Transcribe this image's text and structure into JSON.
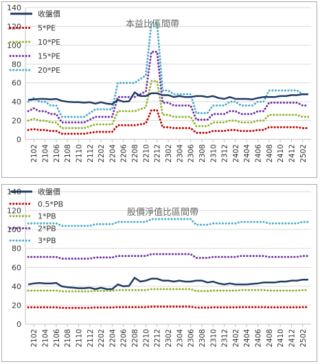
{
  "chart_data": [
    {
      "type": "line",
      "title": "本益比區間帶",
      "xlabel": "",
      "ylabel": "",
      "ylim": [
        0,
        140
      ],
      "yticks": [
        0,
        20,
        40,
        60,
        80,
        100,
        120,
        140
      ],
      "grid": true,
      "legend_position": "top-left",
      "x_tick_labels": [
        "2102",
        "2104",
        "2106",
        "2108",
        "2110",
        "2112",
        "2202",
        "2204",
        "2206",
        "2208",
        "2210",
        "2212",
        "2302",
        "2304",
        "2306",
        "2308",
        "2310",
        "2312",
        "2402",
        "2404",
        "2406",
        "2408",
        "2410",
        "2412",
        "2502"
      ],
      "months": [
        "2101",
        "2102",
        "2103",
        "2104",
        "2105",
        "2106",
        "2107",
        "2108",
        "2109",
        "2110",
        "2111",
        "2112",
        "2201",
        "2202",
        "2203",
        "2204",
        "2205",
        "2206",
        "2207",
        "2208",
        "2209",
        "2210",
        "2211",
        "2212",
        "2301",
        "2302",
        "2303",
        "2304",
        "2305",
        "2306",
        "2307",
        "2308",
        "2309",
        "2310",
        "2311",
        "2312",
        "2401",
        "2402",
        "2403",
        "2404",
        "2405",
        "2406",
        "2407",
        "2408",
        "2409",
        "2410",
        "2411",
        "2412",
        "2501",
        "2502",
        "2503"
      ],
      "series": [
        {
          "name": "收盤價",
          "color": "#1f3864",
          "style": "solid",
          "values": [
            42,
            42.5,
            43,
            43,
            42.5,
            43,
            41,
            40,
            39.5,
            39.5,
            39,
            39.5,
            38,
            39.5,
            38,
            37.5,
            42,
            40,
            40.5,
            50,
            46,
            46,
            49,
            49,
            47,
            47,
            45,
            46,
            45,
            45,
            46,
            46,
            45,
            46,
            44,
            43,
            45,
            43,
            43,
            43,
            42.5,
            44,
            45,
            45,
            45,
            46,
            46,
            47,
            47,
            48,
            48
          ]
        },
        {
          "name": "5*PE",
          "color": "#c00000",
          "style": "dotted",
          "values": [
            10,
            11,
            10,
            10,
            9,
            9,
            6,
            6,
            6,
            6,
            6,
            7,
            8,
            8,
            8,
            8,
            15,
            15,
            15,
            15,
            16,
            17,
            31,
            31,
            13,
            13,
            12,
            12,
            12,
            12,
            7,
            7,
            7,
            9,
            9,
            9,
            10,
            10,
            9,
            9,
            9,
            10,
            10,
            13,
            13,
            13,
            13,
            13,
            13,
            12,
            12
          ]
        },
        {
          "name": "10*PE",
          "color": "#8db32e",
          "style": "dotted",
          "values": [
            20,
            22,
            20,
            20,
            18,
            18,
            12,
            12,
            12,
            12,
            12,
            14,
            16,
            16,
            16,
            16,
            30,
            30,
            30,
            30,
            32,
            34,
            62,
            62,
            26,
            26,
            24,
            24,
            24,
            24,
            14,
            14,
            14,
            18,
            18,
            18,
            20,
            20,
            18,
            18,
            18,
            20,
            20,
            26,
            26,
            26,
            26,
            26,
            26,
            24,
            24
          ]
        },
        {
          "name": "15*PE",
          "color": "#7030a0",
          "style": "dotted",
          "values": [
            30,
            33,
            30,
            30,
            27,
            27,
            18,
            18,
            18,
            18,
            18,
            21,
            24,
            24,
            24,
            24,
            45,
            45,
            45,
            45,
            48,
            51,
            93,
            93,
            39,
            39,
            36,
            36,
            36,
            36,
            21,
            21,
            21,
            27,
            27,
            27,
            30,
            30,
            27,
            27,
            27,
            30,
            30,
            39,
            39,
            39,
            39,
            39,
            39,
            36,
            36
          ]
        },
        {
          "name": "20*PE",
          "color": "#4bacc6",
          "style": "dotted",
          "values": [
            40,
            44,
            40,
            40,
            36,
            36,
            24,
            24,
            24,
            24,
            24,
            28,
            32,
            32,
            32,
            32,
            60,
            60,
            60,
            60,
            64,
            68,
            124,
            124,
            52,
            52,
            48,
            48,
            48,
            48,
            28,
            28,
            28,
            36,
            36,
            36,
            40,
            40,
            36,
            36,
            36,
            40,
            40,
            52,
            52,
            52,
            52,
            52,
            52,
            48,
            48
          ]
        }
      ]
    },
    {
      "type": "line",
      "title": "股價淨值比區間帶",
      "xlabel": "",
      "ylabel": "",
      "ylim": [
        0,
        140
      ],
      "yticks": [
        0,
        20,
        40,
        60,
        80,
        100,
        120,
        140
      ],
      "grid": true,
      "legend_position": "top-left",
      "x_tick_labels": [
        "2102",
        "2104",
        "2106",
        "2108",
        "2110",
        "2112",
        "2202",
        "2204",
        "2206",
        "2208",
        "2210",
        "2212",
        "2302",
        "2304",
        "2306",
        "2308",
        "2310",
        "2312",
        "2402",
        "2404",
        "2406",
        "2408",
        "2410",
        "2412",
        "2502"
      ],
      "months": [
        "2101",
        "2102",
        "2103",
        "2104",
        "2105",
        "2106",
        "2107",
        "2108",
        "2109",
        "2110",
        "2111",
        "2112",
        "2201",
        "2202",
        "2203",
        "2204",
        "2205",
        "2206",
        "2207",
        "2208",
        "2209",
        "2210",
        "2211",
        "2212",
        "2301",
        "2302",
        "2303",
        "2304",
        "2305",
        "2306",
        "2307",
        "2308",
        "2309",
        "2310",
        "2311",
        "2312",
        "2401",
        "2402",
        "2403",
        "2404",
        "2405",
        "2406",
        "2407",
        "2408",
        "2409",
        "2410",
        "2411",
        "2412",
        "2501",
        "2502",
        "2503"
      ],
      "series": [
        {
          "name": "收盤價",
          "color": "#1f3864",
          "style": "solid",
          "values": [
            42,
            43,
            43.5,
            43,
            43,
            43.5,
            40,
            39,
            38.5,
            38,
            38,
            38.5,
            37,
            38.5,
            37,
            37,
            42,
            40,
            40.5,
            49,
            45,
            46,
            48,
            48,
            46,
            46,
            45,
            46,
            45,
            45,
            46,
            46,
            44,
            45,
            43,
            42,
            43,
            42,
            42,
            42,
            42.5,
            43,
            44,
            44,
            44,
            45,
            45,
            46,
            46,
            47,
            47
          ]
        },
        {
          "name": "0.5*PB",
          "color": "#c00000",
          "style": "dotted",
          "values": [
            17.8,
            17.8,
            17.8,
            17.8,
            17.8,
            17.8,
            17.3,
            17.3,
            17.3,
            17.3,
            17.3,
            17.3,
            17.6,
            17.6,
            17.6,
            17.6,
            18,
            18,
            18,
            18,
            18,
            18,
            18.5,
            18.5,
            18.5,
            18.5,
            18.5,
            18.5,
            18.5,
            18.5,
            17.5,
            17.5,
            17.5,
            17.8,
            17.8,
            17.8,
            17.8,
            17.8,
            18,
            18,
            18,
            18,
            18,
            17.8,
            17.8,
            17.8,
            17.8,
            17.8,
            17.8,
            18,
            18
          ]
        },
        {
          "name": "1*PB",
          "color": "#8db32e",
          "style": "dotted",
          "values": [
            35.5,
            35.5,
            35.5,
            35.5,
            35.5,
            35.5,
            34.6,
            34.6,
            34.6,
            34.6,
            34.6,
            34.6,
            35.2,
            35.2,
            35.2,
            35.2,
            36,
            36,
            36,
            36,
            36,
            36,
            37,
            37,
            37,
            37,
            37,
            37,
            37,
            37,
            35,
            35,
            35,
            35.5,
            35.5,
            35.5,
            35.5,
            35.5,
            36,
            36,
            36,
            36,
            36,
            35.5,
            35.5,
            35.5,
            35.5,
            35.5,
            35.5,
            36,
            36
          ]
        },
        {
          "name": "2*PB",
          "color": "#7030a0",
          "style": "dotted",
          "values": [
            71,
            71,
            71,
            71,
            71,
            71,
            69.2,
            69.2,
            69.2,
            69.2,
            69.2,
            69.2,
            70.4,
            70.4,
            70.4,
            70.4,
            72,
            72,
            72,
            72,
            72,
            72,
            74,
            74,
            74,
            74,
            74,
            74,
            74,
            74,
            70,
            70,
            70,
            71,
            71,
            71,
            71,
            71,
            72,
            72,
            72,
            72,
            72,
            71,
            71,
            71,
            71,
            71,
            71,
            72,
            72
          ]
        },
        {
          "name": "3*PB",
          "color": "#4bacc6",
          "style": "dotted",
          "values": [
            106.5,
            106.5,
            106.5,
            106.5,
            106.5,
            106.5,
            103.8,
            103.8,
            103.8,
            103.8,
            103.8,
            103.8,
            105.6,
            105.6,
            105.6,
            105.6,
            108,
            108,
            108,
            108,
            108,
            108,
            111,
            111,
            111,
            111,
            111,
            111,
            111,
            111,
            105,
            105,
            105,
            106.5,
            106.5,
            106.5,
            106.5,
            106.5,
            108,
            108,
            108,
            108,
            108,
            106.5,
            106.5,
            106.5,
            106.5,
            106.5,
            106.5,
            108,
            108
          ]
        }
      ]
    }
  ]
}
